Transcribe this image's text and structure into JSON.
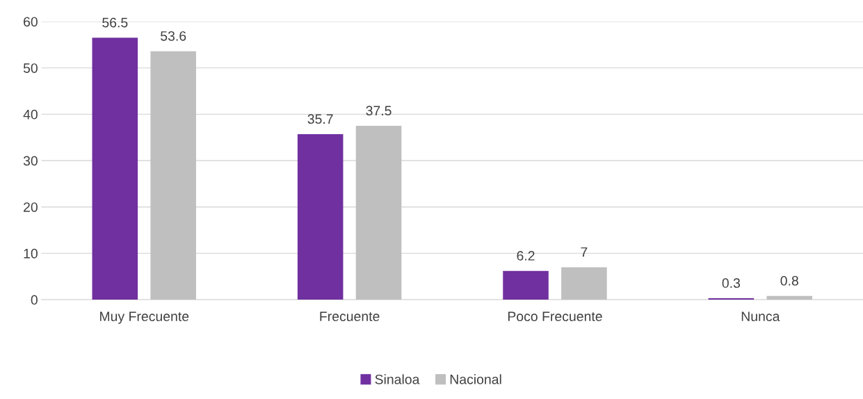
{
  "chart_data": {
    "type": "bar",
    "categories": [
      "Muy Frecuente",
      "Frecuente",
      "Poco Frecuente",
      "Nunca"
    ],
    "series": [
      {
        "name": "Sinaloa",
        "color": "#7030a0",
        "values": [
          56.5,
          35.7,
          6.2,
          0.3
        ]
      },
      {
        "name": "Nacional",
        "color": "#bfbfbf",
        "values": [
          53.6,
          37.5,
          7,
          0.8
        ]
      }
    ],
    "ylim": [
      0,
      60
    ],
    "yticks": [
      0,
      10,
      20,
      30,
      40,
      50,
      60
    ],
    "grid": "y",
    "legend": "bottom",
    "data_labels": true
  }
}
